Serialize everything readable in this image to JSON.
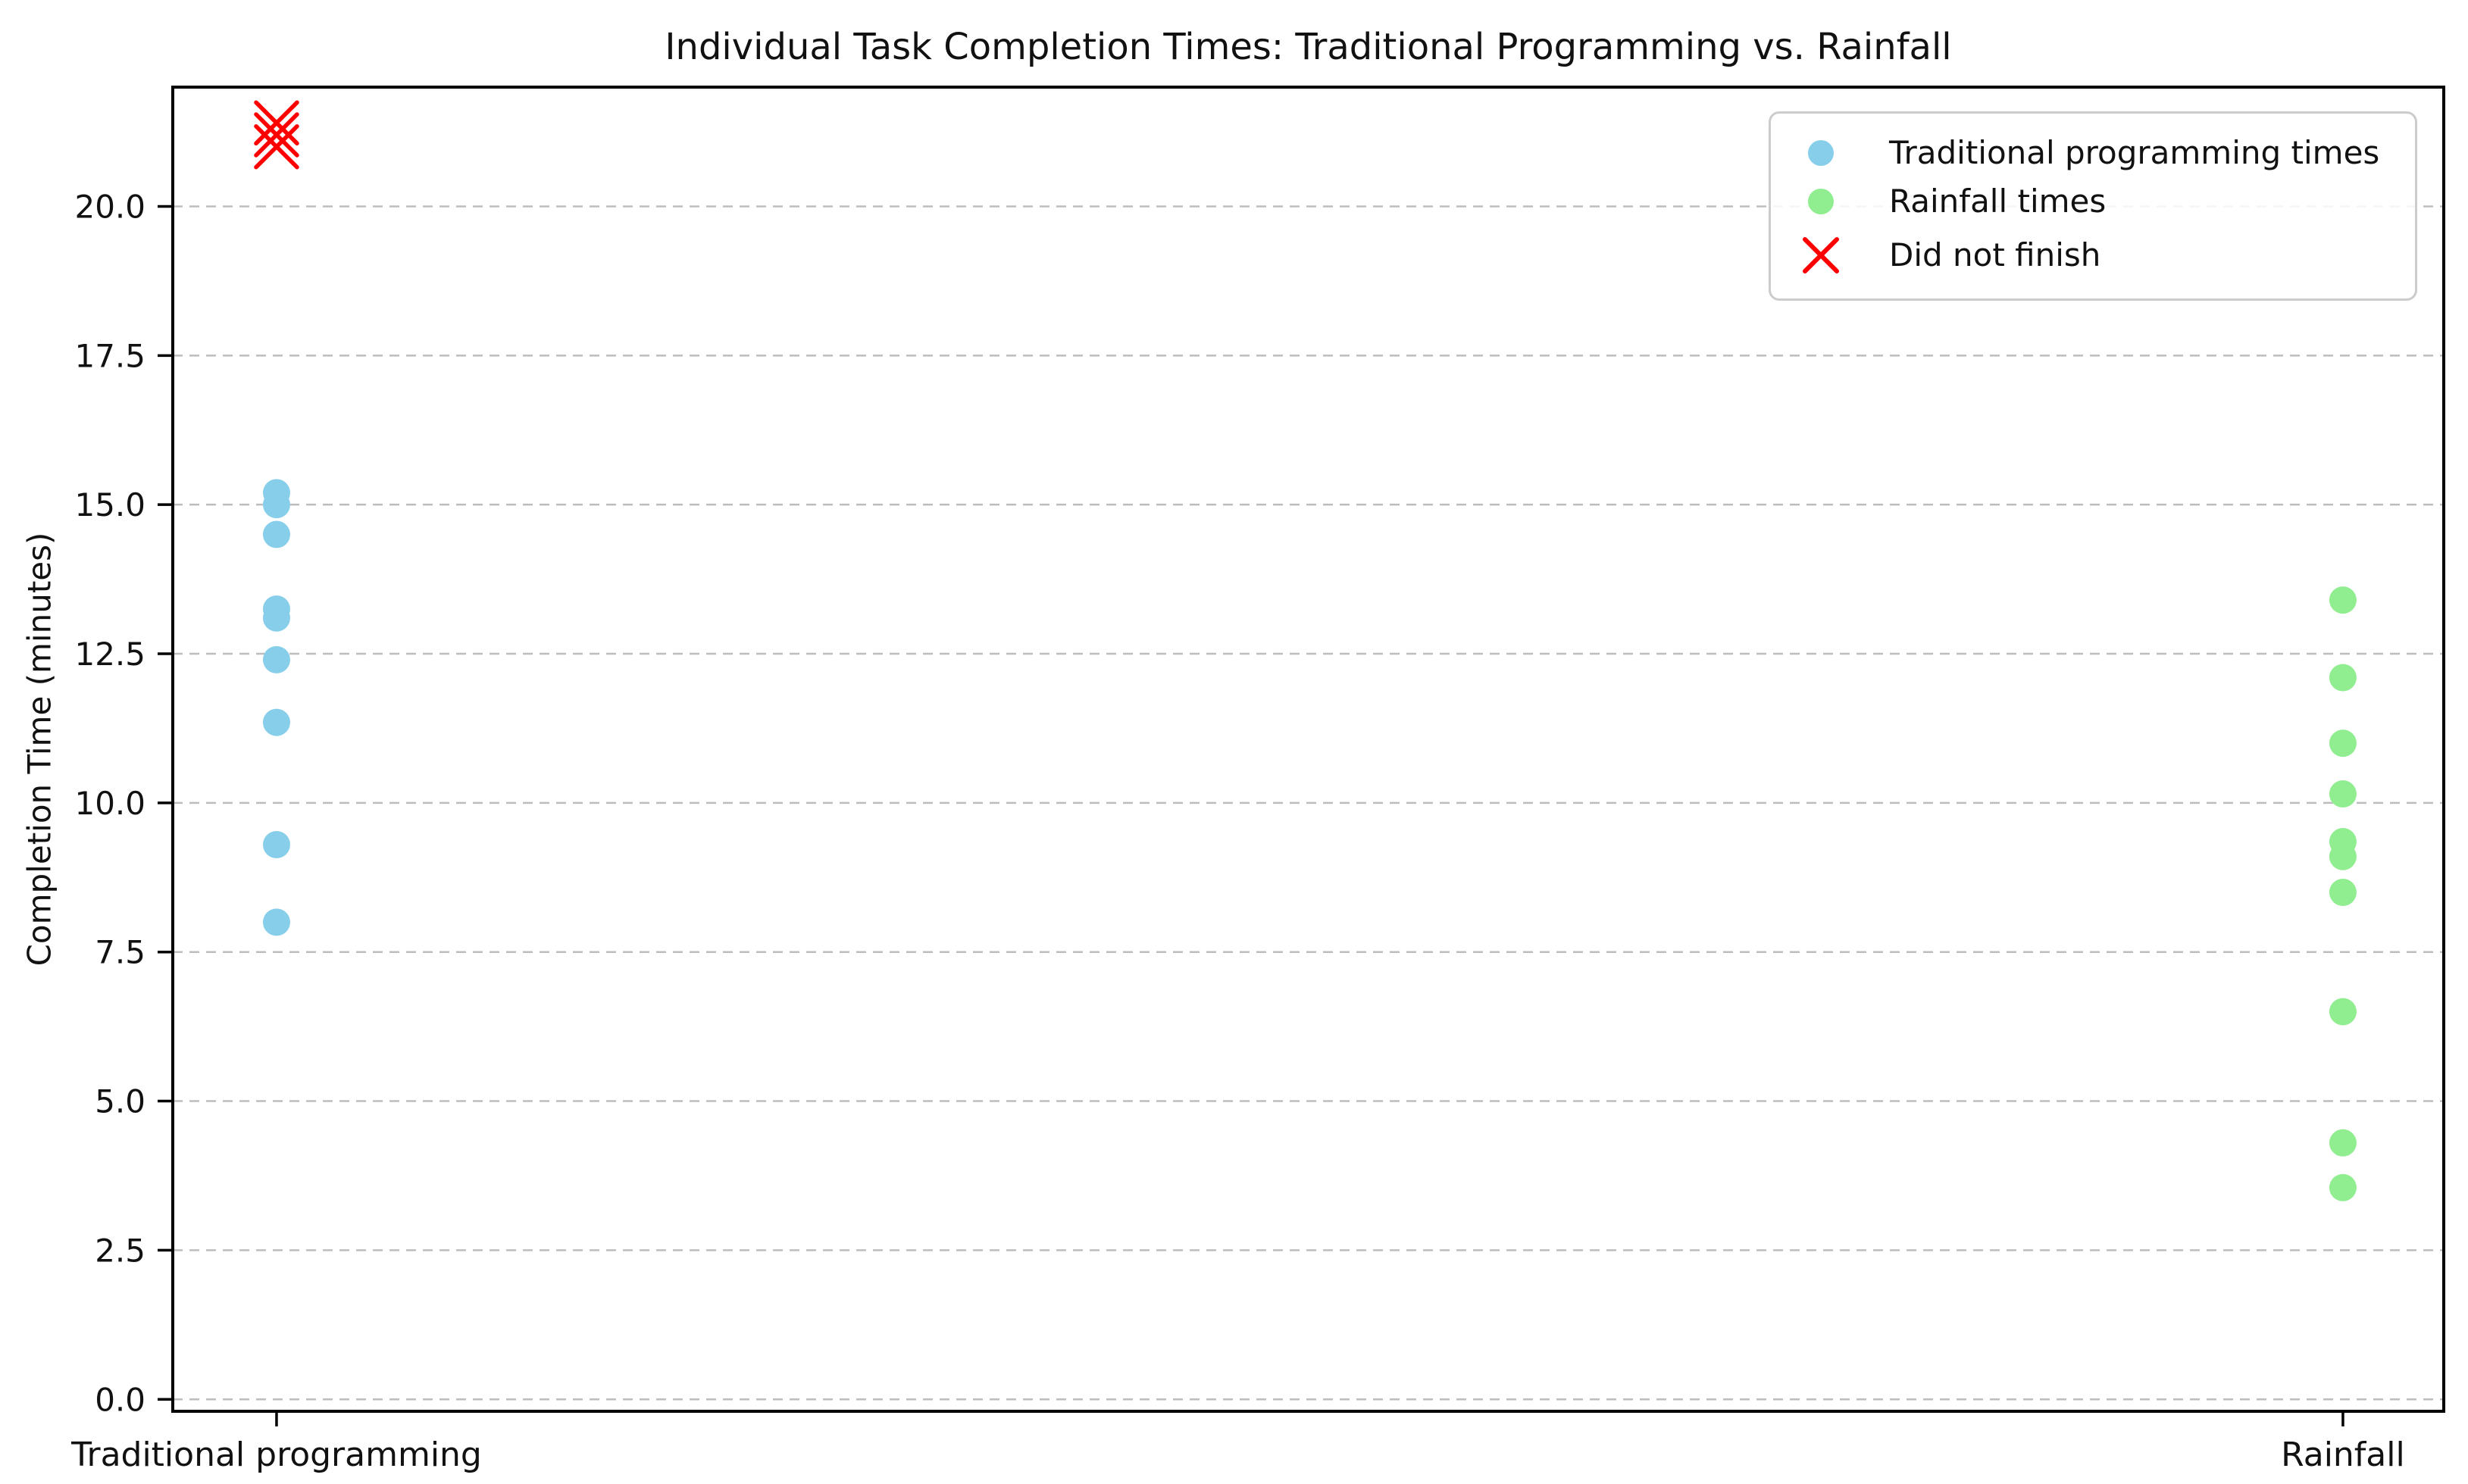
{
  "figure": {
    "background": "#ffffff"
  },
  "chart_data": {
    "type": "scatter",
    "title": "Individual Task Completion Times: Traditional Programming vs. Rainfall",
    "xlabel": "",
    "ylabel": "Completion Time (minutes)",
    "categories": [
      "Traditional programming",
      "Rainfall"
    ],
    "y_ticks": [
      0.0,
      2.5,
      5.0,
      7.5,
      10.0,
      12.5,
      15.0,
      17.5,
      20.0
    ],
    "y_tick_labels": [
      "0.0",
      "2.5",
      "5.0",
      "7.5",
      "10.0",
      "12.5",
      "15.0",
      "17.5",
      "20.0"
    ],
    "ylim": [
      -0.2,
      22.0
    ],
    "grid": "horizontal-dashed",
    "legend_position": "upper-right",
    "series": [
      {
        "name": "Traditional programming times",
        "marker": "circle",
        "color": "#87CEEB",
        "category_index": 0,
        "values": [
          15.2,
          15.0,
          14.5,
          13.25,
          13.1,
          12.4,
          11.35,
          9.3,
          8.0
        ]
      },
      {
        "name": "Rainfall times",
        "marker": "circle",
        "color": "#90EE90",
        "category_index": 1,
        "values": [
          13.4,
          12.1,
          11.0,
          10.15,
          9.35,
          9.1,
          8.5,
          6.5,
          4.3,
          3.55
        ]
      },
      {
        "name": "Did not finish",
        "marker": "x",
        "color": "#FF0000",
        "category_index": 0,
        "values": [
          21.4,
          21.2,
          21.0
        ]
      }
    ],
    "legend": [
      {
        "label": "Traditional programming times",
        "marker": "circle",
        "color": "#87CEEB"
      },
      {
        "label": "Rainfall times",
        "marker": "circle",
        "color": "#90EE90"
      },
      {
        "label": "Did not finish",
        "marker": "x",
        "color": "#FF0000"
      }
    ],
    "colors": {
      "grid": "#bdbdbd",
      "spine": "#000000",
      "text": "#111111",
      "dnf_x": "#FF0000",
      "traditional": "#87CEEB",
      "rainfall": "#90EE90"
    }
  }
}
